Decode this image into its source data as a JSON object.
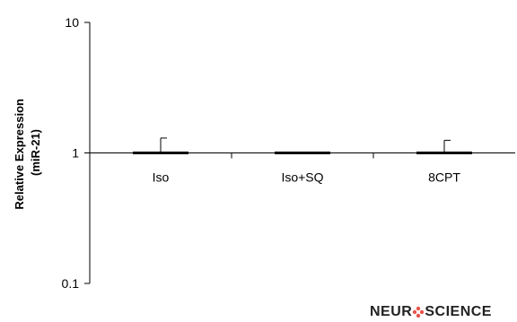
{
  "chart_data": {
    "type": "bar",
    "yscale": "log",
    "ylim": [
      0.1,
      10
    ],
    "yticks": [
      {
        "value": 10,
        "label": "10"
      },
      {
        "value": 1,
        "label": "1"
      },
      {
        "value": 0.1,
        "label": "0.1"
      }
    ],
    "ylabel_line1": "Relative Expression",
    "ylabel_line2": "(miR-21)",
    "xlabel": "",
    "categories": [
      "Iso",
      "Iso+SQ",
      "8CPT"
    ],
    "values": [
      1.0,
      1.0,
      1.0
    ],
    "error_upper": [
      1.3,
      1.0,
      1.25
    ],
    "grid": false,
    "colors": {
      "axis": "#000000",
      "bar": "#000000",
      "logo_accent": "#e8534a"
    }
  },
  "logo": {
    "text_before": "NEUR",
    "text_after": "SCIENCE"
  }
}
